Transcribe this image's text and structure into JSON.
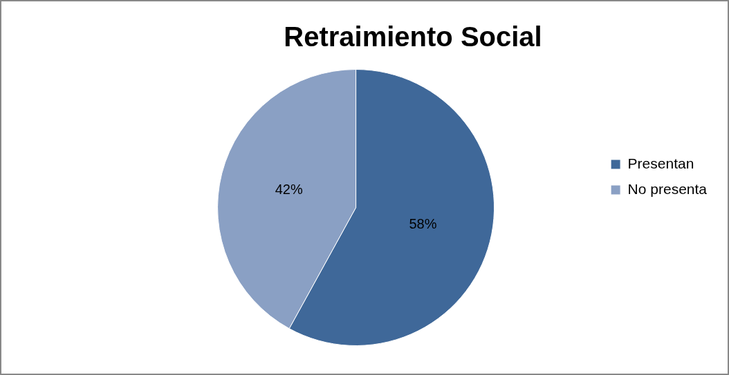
{
  "chart_data": {
    "type": "pie",
    "title": "Retraimiento Social",
    "categories": [
      "Presentan",
      "No presenta"
    ],
    "values": [
      58,
      42
    ],
    "colors": [
      "#3f6899",
      "#8aa0c4"
    ],
    "value_labels": [
      "58%",
      "42%"
    ],
    "legend": "right"
  }
}
